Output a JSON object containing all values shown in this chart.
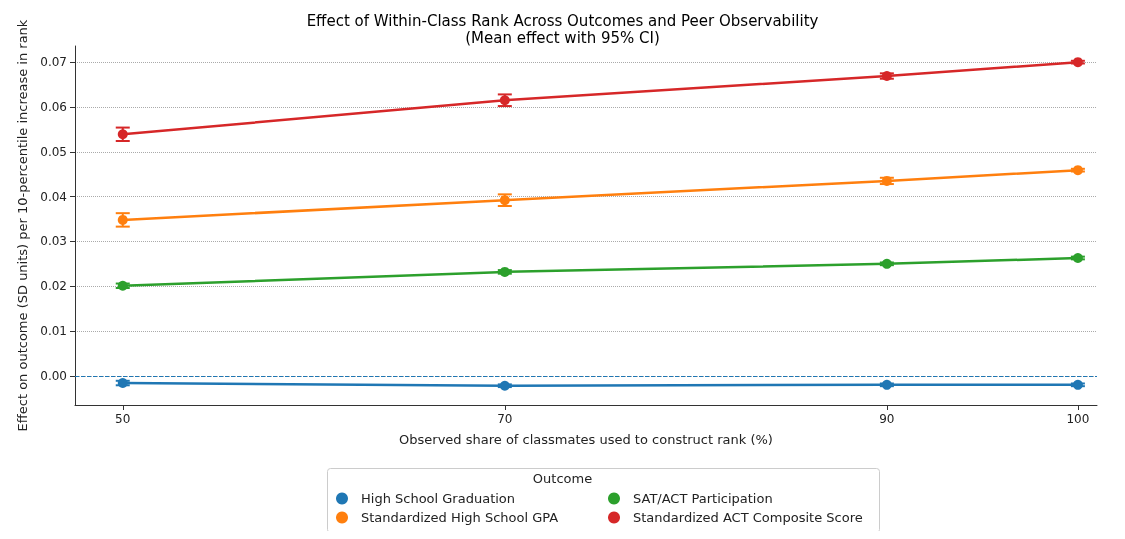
{
  "chart_data": {
    "type": "line",
    "title": "Effect of Within-Class Rank Across Outcomes and Peer Observability",
    "subtitle": "(Mean effect with 95% CI)",
    "xlabel": "Observed share of classmates used to construct rank (%)",
    "ylabel": "Effect on outcome (SD units) per 10-percentile increase in rank",
    "legend_title": "Outcome",
    "x": [
      50,
      70,
      90,
      100
    ],
    "series": [
      {
        "name": "High School Graduation",
        "color": "#1f77b4",
        "values": [
          -0.0016,
          -0.0022,
          -0.002,
          -0.002
        ],
        "errors": [
          0.0005,
          0.0003,
          0.0003,
          0.0003
        ]
      },
      {
        "name": "Standardized High School GPA",
        "color": "#ff7f0e",
        "values": [
          0.0348,
          0.0392,
          0.0435,
          0.0459
        ],
        "errors": [
          0.0015,
          0.0013,
          0.0007,
          0.0003
        ]
      },
      {
        "name": "SAT/ACT Participation",
        "color": "#2ca02c",
        "values": [
          0.0201,
          0.0232,
          0.025,
          0.0263
        ],
        "errors": [
          0.0005,
          0.0004,
          0.0003,
          0.0003
        ]
      },
      {
        "name": "Standardized ACT Composite Score",
        "color": "#d62728",
        "values": [
          0.0539,
          0.0615,
          0.0669,
          0.07
        ],
        "errors": [
          0.0015,
          0.0013,
          0.0006,
          0.0003
        ]
      }
    ],
    "xlim": [
      47.5,
      101
    ],
    "xticks": [
      50,
      70,
      90,
      100
    ],
    "ylim": [
      -0.0065,
      0.0736
    ],
    "yticks": [
      {
        "value": 0,
        "label": "0.00"
      },
      0.01,
      0.02,
      0.03,
      0.04,
      0.05,
      0.06,
      0.07
    ],
    "ref_lines": [
      {
        "axis": "y",
        "value": 0,
        "color": "#1f77b4",
        "line_style": "dashed"
      }
    ],
    "grid": "y",
    "legend": "bottom",
    "marker": "circle",
    "line_style": "solid"
  }
}
